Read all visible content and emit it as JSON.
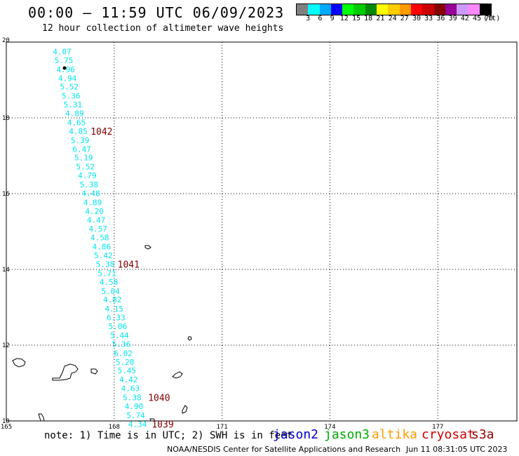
{
  "header": {
    "title": "00:00 – 11:59 UTC 06/09/2023",
    "subtitle": "12 hour collection of altimeter wave heights"
  },
  "legend": {
    "colors": [
      "#808080",
      "#00ffff",
      "#00aaff",
      "#0000ff",
      "#00ff00",
      "#00cc00",
      "#008800",
      "#ffff00",
      "#ffcc00",
      "#ff9900",
      "#ff0000",
      "#cc0000",
      "#880000",
      "#990099",
      "#cc99ff",
      "#ff88ff",
      "#000000"
    ],
    "labels": [
      "3",
      "6",
      "9",
      "12",
      "15",
      "18",
      "21",
      "24",
      "27",
      "30",
      "33",
      "36",
      "39",
      "42",
      "45",
      "70",
      "(ft)"
    ]
  },
  "chart_data": {
    "type": "scatter",
    "xlim": [
      165,
      179.2
    ],
    "ylim": [
      10,
      20
    ],
    "x_ticks": [
      "165",
      "168",
      "171",
      "174",
      "177"
    ],
    "y_ticks": [
      "20",
      "18",
      "16",
      "14",
      "12",
      "10"
    ],
    "grid": true,
    "swh_color": "#00e5ee",
    "points": [
      {
        "lon": 166.55,
        "lat": 19.75,
        "swh": "4.07"
      },
      {
        "lon": 166.6,
        "lat": 19.52,
        "swh": "5.75"
      },
      {
        "lon": 166.65,
        "lat": 19.28,
        "swh": "4.96"
      },
      {
        "lon": 166.7,
        "lat": 19.05,
        "swh": "4.94"
      },
      {
        "lon": 166.75,
        "lat": 18.82,
        "swh": "5.52"
      },
      {
        "lon": 166.8,
        "lat": 18.58,
        "swh": "5.36"
      },
      {
        "lon": 166.85,
        "lat": 18.35,
        "swh": "5.31"
      },
      {
        "lon": 166.9,
        "lat": 18.12,
        "swh": "4.89"
      },
      {
        "lon": 166.95,
        "lat": 17.88,
        "swh": "4.65"
      },
      {
        "lon": 167.0,
        "lat": 17.65,
        "swh": "4.85"
      },
      {
        "lon": 167.05,
        "lat": 17.41,
        "swh": "5.39"
      },
      {
        "lon": 167.1,
        "lat": 17.18,
        "swh": "6.47"
      },
      {
        "lon": 167.15,
        "lat": 16.95,
        "swh": "5.19"
      },
      {
        "lon": 167.2,
        "lat": 16.71,
        "swh": "5.52"
      },
      {
        "lon": 167.25,
        "lat": 16.48,
        "swh": "4.79"
      },
      {
        "lon": 167.3,
        "lat": 16.24,
        "swh": "5.38"
      },
      {
        "lon": 167.35,
        "lat": 16.01,
        "swh": "4.48"
      },
      {
        "lon": 167.4,
        "lat": 15.77,
        "swh": "4.89"
      },
      {
        "lon": 167.45,
        "lat": 15.54,
        "swh": "4.20"
      },
      {
        "lon": 167.5,
        "lat": 15.31,
        "swh": "4.47"
      },
      {
        "lon": 167.55,
        "lat": 15.07,
        "swh": "4.57"
      },
      {
        "lon": 167.6,
        "lat": 14.84,
        "swh": "4.58"
      },
      {
        "lon": 167.65,
        "lat": 14.6,
        "swh": "4.86"
      },
      {
        "lon": 167.7,
        "lat": 14.37,
        "swh": "5.42"
      },
      {
        "lon": 167.75,
        "lat": 14.14,
        "swh": "5.38"
      },
      {
        "lon": 167.8,
        "lat": 13.9,
        "swh": "5.71"
      },
      {
        "lon": 167.85,
        "lat": 13.67,
        "swh": "4.58"
      },
      {
        "lon": 167.9,
        "lat": 13.43,
        "swh": "5.04"
      },
      {
        "lon": 167.95,
        "lat": 13.2,
        "swh": "4.82"
      },
      {
        "lon": 168.0,
        "lat": 12.96,
        "swh": "4.15"
      },
      {
        "lon": 168.05,
        "lat": 12.73,
        "swh": "6.33"
      },
      {
        "lon": 168.1,
        "lat": 12.5,
        "swh": "5.06"
      },
      {
        "lon": 168.15,
        "lat": 12.26,
        "swh": "5.44"
      },
      {
        "lon": 168.2,
        "lat": 12.03,
        "swh": "5.36"
      },
      {
        "lon": 168.25,
        "lat": 11.79,
        "swh": "6.02"
      },
      {
        "lon": 168.3,
        "lat": 11.56,
        "swh": "5.20"
      },
      {
        "lon": 168.35,
        "lat": 11.33,
        "swh": "5.45"
      },
      {
        "lon": 168.4,
        "lat": 11.09,
        "swh": "4.42"
      },
      {
        "lon": 168.45,
        "lat": 10.86,
        "swh": "4.63"
      },
      {
        "lon": 168.5,
        "lat": 10.62,
        "swh": "5.38"
      },
      {
        "lon": 168.55,
        "lat": 10.39,
        "swh": "4.90"
      },
      {
        "lon": 168.6,
        "lat": 10.15,
        "swh": "5.74"
      },
      {
        "lon": 168.65,
        "lat": 9.92,
        "swh": "4.34"
      }
    ],
    "pass_labels": [
      {
        "lon": 167.65,
        "lat": 17.65,
        "text": "1042",
        "color": "#800000"
      },
      {
        "lon": 168.4,
        "lat": 14.14,
        "text": "1041",
        "color": "#800000"
      },
      {
        "lon": 169.25,
        "lat": 10.62,
        "text": "1040",
        "color": "#800000"
      },
      {
        "lon": 169.35,
        "lat": 9.92,
        "text": "1039",
        "color": "#800000"
      }
    ]
  },
  "footer": {
    "note": "note: 1) Time is in UTC; 2) SWH is in feet",
    "satellites": [
      {
        "name": "jason2",
        "color": "#0000cc"
      },
      {
        "name": "jason3",
        "color": "#00aa00"
      },
      {
        "name": "altika",
        "color": "#ff9900"
      },
      {
        "name": "cryosat",
        "color": "#cc0000"
      },
      {
        "name": "s3a",
        "color": "#990000"
      }
    ],
    "credit": "NOAA/NESDIS Center for Satellite Applications and Research",
    "timestamp": "Jun 11 08:31:05 UTC 2023"
  }
}
